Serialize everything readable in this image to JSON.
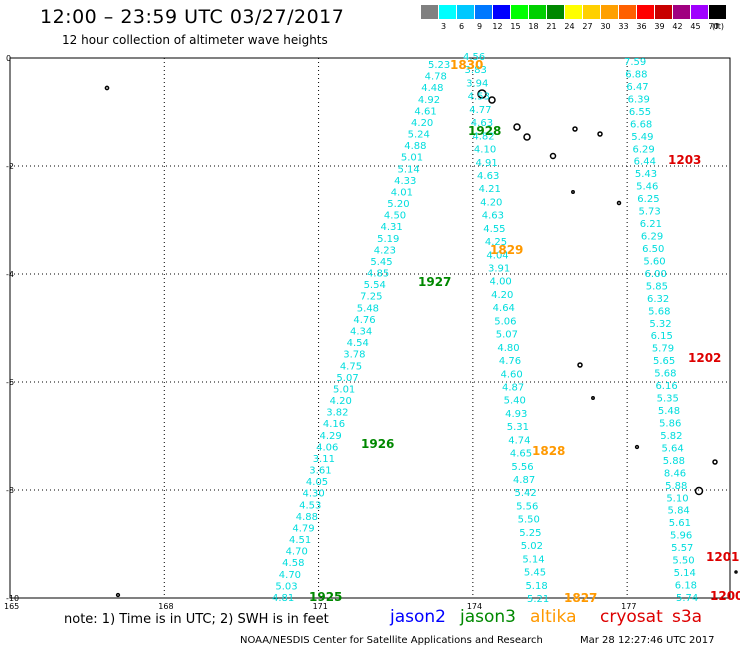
{
  "header": {
    "title": "12:00 – 23:59 UTC 03/27/2017",
    "subtitle": "12 hour collection of altimeter wave heights"
  },
  "legend": {
    "unit": "(ft)",
    "bins": [
      {
        "label": "",
        "color": "#808080"
      },
      {
        "label": "3",
        "color": "#00ffff"
      },
      {
        "label": "6",
        "color": "#00c8ff"
      },
      {
        "label": "9",
        "color": "#0078ff"
      },
      {
        "label": "12",
        "color": "#0000ff"
      },
      {
        "label": "15",
        "color": "#00ff00"
      },
      {
        "label": "18",
        "color": "#00d000"
      },
      {
        "label": "21",
        "color": "#008800"
      },
      {
        "label": "24",
        "color": "#ffff00"
      },
      {
        "label": "27",
        "color": "#ffd000"
      },
      {
        "label": "30",
        "color": "#ffa000"
      },
      {
        "label": "33",
        "color": "#ff6000"
      },
      {
        "label": "36",
        "color": "#ff0000"
      },
      {
        "label": "39",
        "color": "#c80000"
      },
      {
        "label": "42",
        "color": "#a00080"
      },
      {
        "label": "45",
        "color": "#a000ff"
      },
      {
        "label": "70",
        "color": "#000000"
      }
    ]
  },
  "axes": {
    "lat_labels": [
      "0",
      "-2",
      "-4",
      "-6",
      "-8",
      "-10"
    ],
    "lon_labels": [
      "165",
      "168",
      "171",
      "174",
      "177"
    ],
    "lat_values": [
      0,
      -2,
      -4,
      -6,
      -8,
      -10
    ],
    "lon_values": [
      165,
      168,
      171,
      174,
      177
    ]
  },
  "colors": {
    "wave_text": "#00dddd",
    "jason2": "#0000ff",
    "jason3": "#008800",
    "altika": "#ff9900",
    "cryosat": "#dd0000",
    "s3a": "#dd0000",
    "grid": "#000000"
  },
  "tracks": [
    {
      "satellite": "jason3",
      "values": [
        "5.23",
        "4.78",
        "4.48",
        "4.92",
        "4.61",
        "4.20",
        "5.24",
        "4.88",
        "5.01",
        "5.14",
        "4.33",
        "4.01",
        "5.20",
        "4.50",
        "4.31",
        "5.19",
        "4.23",
        "5.45",
        "4.85",
        "5.54",
        "7.25",
        "5.48",
        "4.76",
        "4.34",
        "4.54",
        "3.78",
        "4.75",
        "5.07",
        "5.01",
        "4.20",
        "3.82",
        "4.16",
        "4.29",
        "4.06",
        "3.11",
        "3.61",
        "4.05",
        "4.30",
        "4.53",
        "4.88",
        "4.79",
        "4.51",
        "4.70",
        "4.58",
        "4.70",
        "5.03",
        "4.81"
      ]
    },
    {
      "satellite": "jason3",
      "values": [
        "4.56",
        "3.83",
        "3.94",
        "4.53",
        "4.77",
        "4.63",
        "4.82",
        "4.10",
        "4.91",
        "4.63",
        "4.21",
        "4.20",
        "4.63",
        "4.55",
        "4.25",
        "4.04",
        "3.91",
        "4.00",
        "4.20",
        "4.64",
        "5.06",
        "5.07",
        "4.80",
        "4.76",
        "4.60",
        "4.87",
        "5.40",
        "4.93",
        "5.31",
        "4.74",
        "4.65",
        "5.56",
        "4.87",
        "5.42",
        "5.56",
        "5.50",
        "5.25",
        "5.02",
        "5.14",
        "5.45",
        "5.18",
        "5.21"
      ]
    },
    {
      "satellite": "cryosat",
      "values": [
        "7.59",
        "6.88",
        "6.47",
        "6.39",
        "6.55",
        "6.68",
        "5.49",
        "6.29",
        "6.44",
        "5.43",
        "5.46",
        "6.25",
        "5.73",
        "6.21",
        "6.29",
        "6.50",
        "5.60",
        "6.00",
        "5.85",
        "6.32",
        "5.68",
        "5.32",
        "6.15",
        "5.79",
        "5.65",
        "5.68",
        "6.16",
        "5.35",
        "5.48",
        "5.86",
        "5.82",
        "5.64",
        "5.88",
        "8.46",
        "5.88",
        "5.10",
        "5.84",
        "5.61",
        "5.96",
        "5.57",
        "5.50",
        "5.14",
        "6.18",
        "5.74"
      ]
    }
  ],
  "pass_labels": [
    {
      "text": "1830",
      "satellite": "altika"
    },
    {
      "text": "1928",
      "satellite": "jason3"
    },
    {
      "text": "1203",
      "satellite": "cryosat"
    },
    {
      "text": "1829",
      "satellite": "altika"
    },
    {
      "text": "1927",
      "satellite": "jason3"
    },
    {
      "text": "1202",
      "satellite": "cryosat"
    },
    {
      "text": "1926",
      "satellite": "jason3"
    },
    {
      "text": "1828",
      "satellite": "altika"
    },
    {
      "text": "1925",
      "satellite": "jason3"
    },
    {
      "text": "1827",
      "satellite": "altika"
    },
    {
      "text": "1201",
      "satellite": "cryosat"
    },
    {
      "text": "1200",
      "satellite": "cryosat"
    }
  ],
  "footer": {
    "note": "note: 1) Time is in UTC; 2) SWH is in feet",
    "satellites": {
      "jason2": "jason2",
      "jason3": "jason3",
      "altika": "altika",
      "cryosat": "cryosat",
      "s3a": "s3a"
    },
    "credit": "NOAA/NESDIS Center for Satellite Applications and Research",
    "timestamp": "Mar 28 12:27:46 UTC 2017"
  }
}
